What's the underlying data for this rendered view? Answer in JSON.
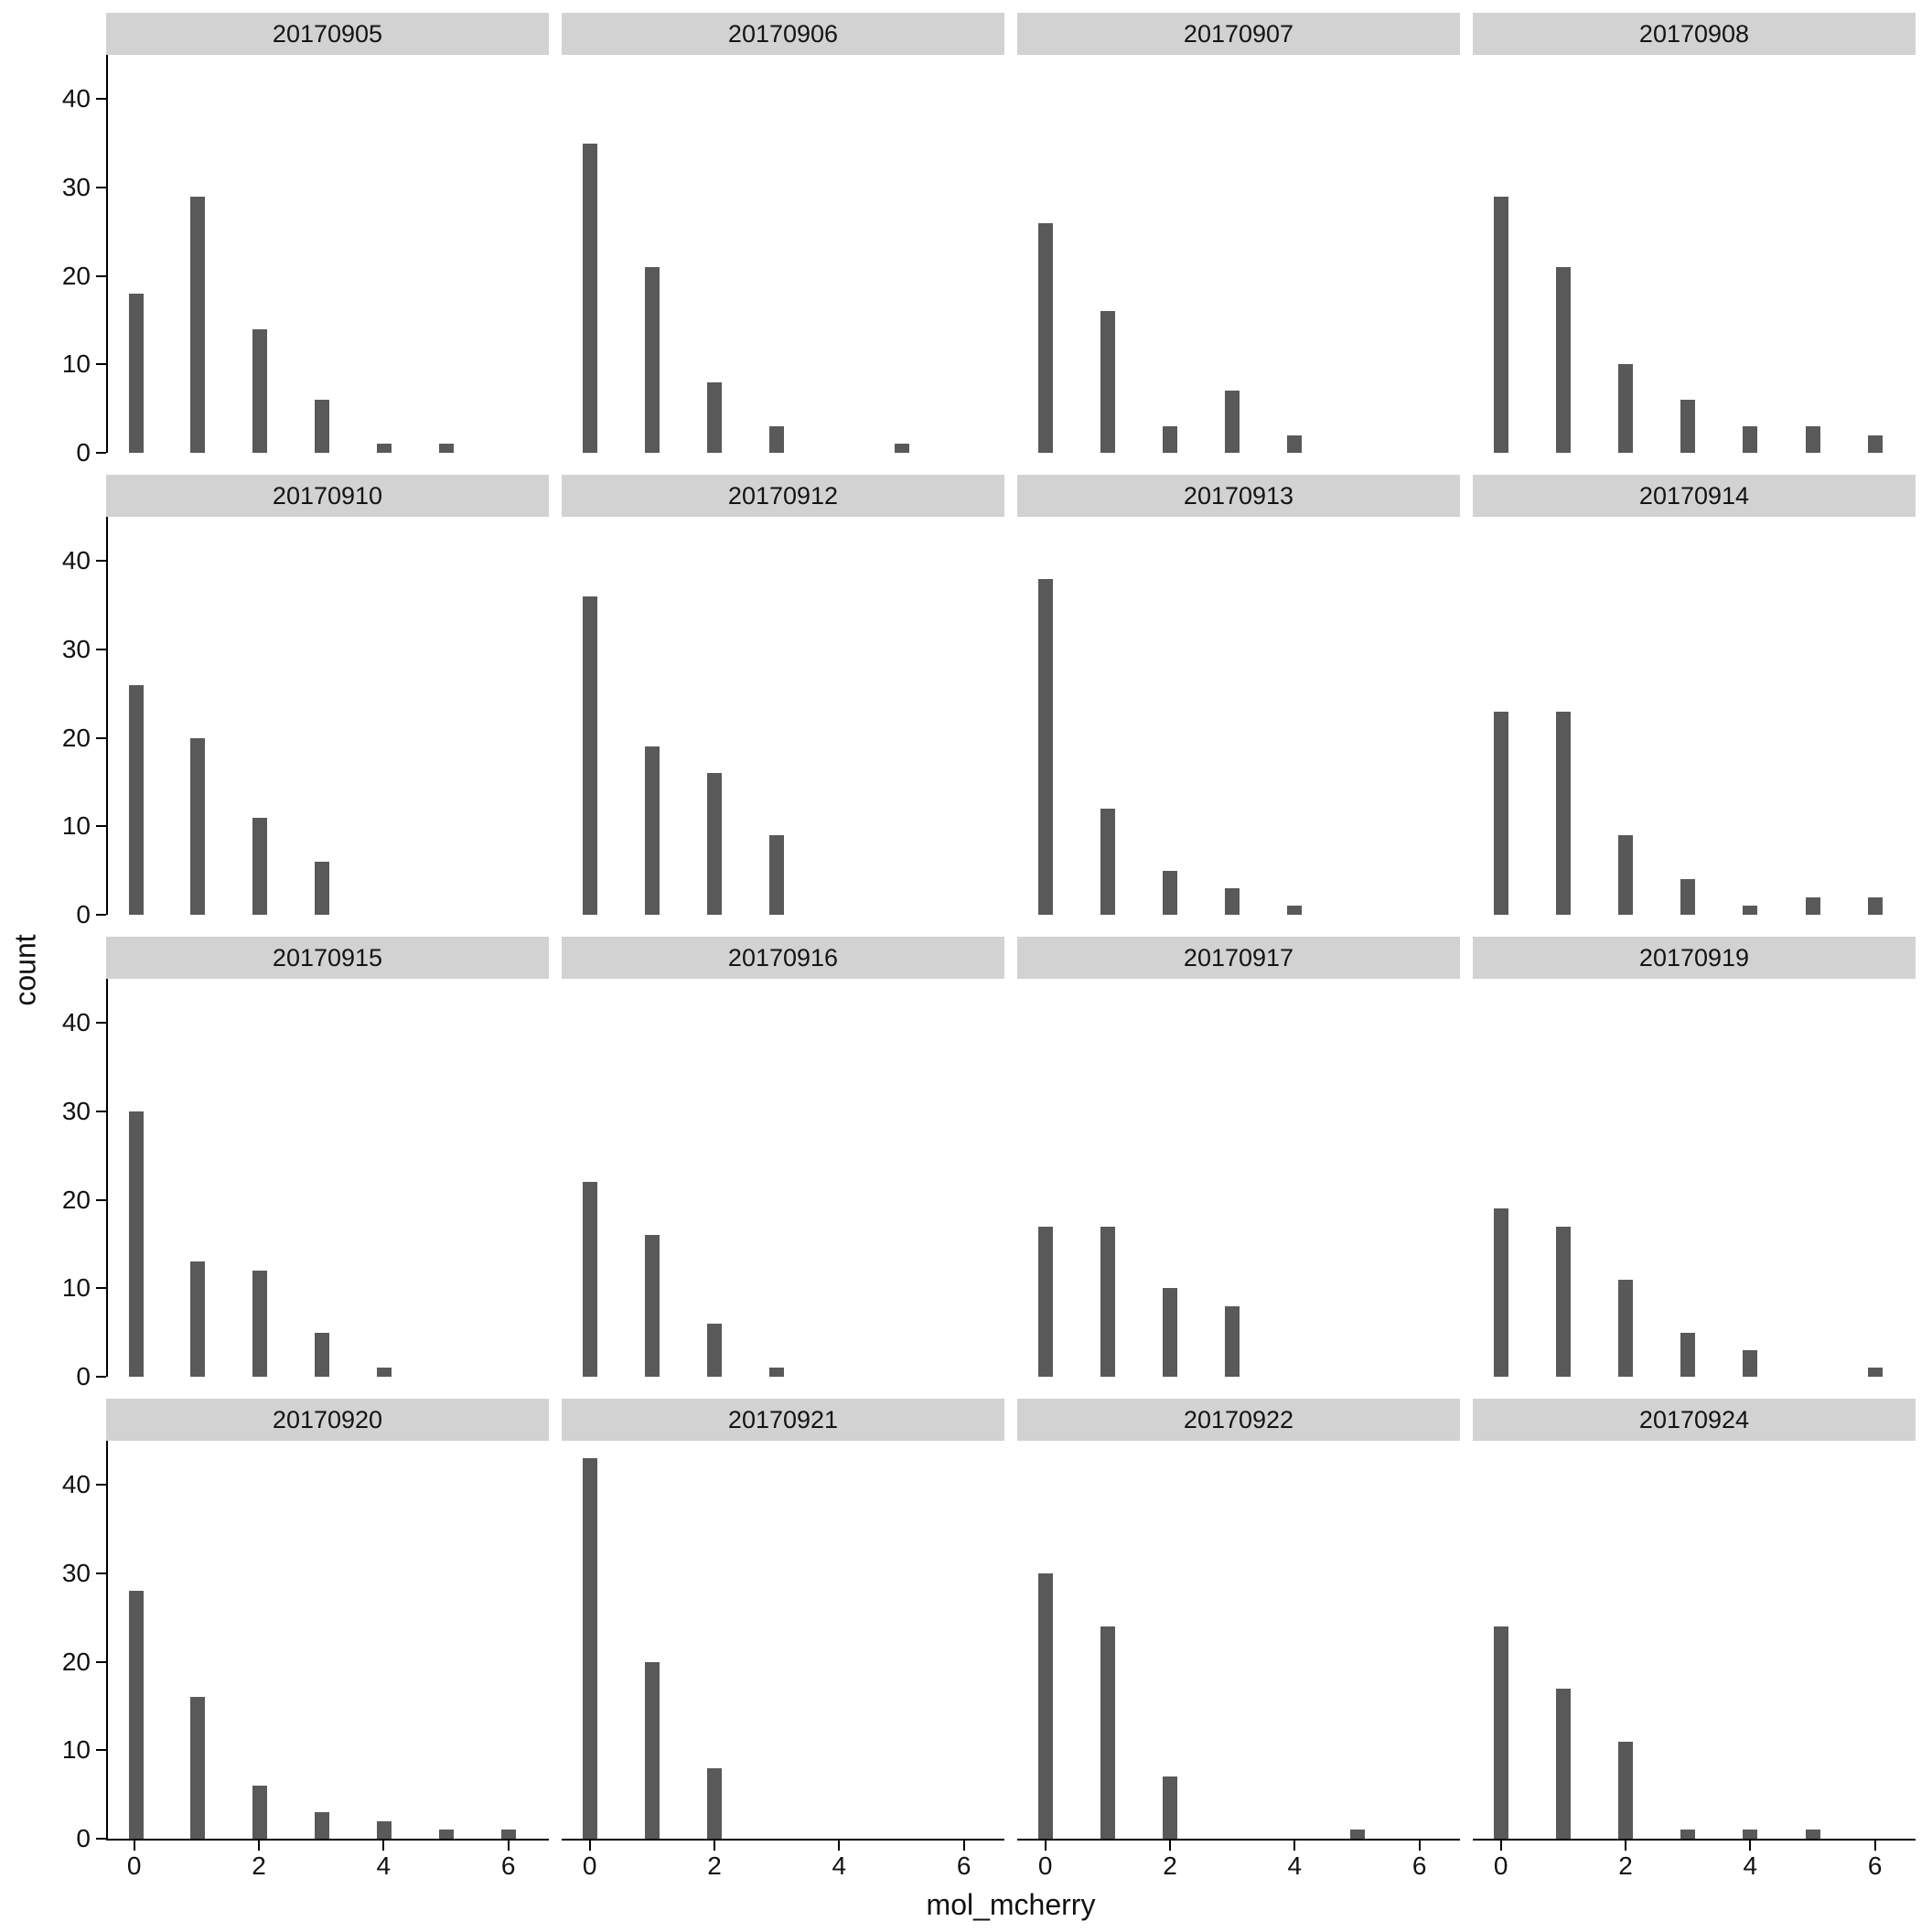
{
  "chart_data": {
    "type": "bar",
    "title": "",
    "xlabel": "mol_mcherry",
    "ylabel": "count",
    "xlim": [
      -0.45,
      6.65
    ],
    "ylim": [
      0,
      45
    ],
    "xticks": [
      0,
      2,
      4,
      6
    ],
    "yticks": [
      0,
      10,
      20,
      30,
      40
    ],
    "grid": "off",
    "legend": "none",
    "bar_color": "#595959",
    "strip_color": "#d2d2d2",
    "facets": [
      {
        "label": "20170905",
        "bars": [
          [
            0,
            18
          ],
          [
            1,
            29
          ],
          [
            2,
            14
          ],
          [
            3,
            6
          ],
          [
            4,
            1
          ],
          [
            5,
            1
          ]
        ]
      },
      {
        "label": "20170906",
        "bars": [
          [
            0,
            35
          ],
          [
            1,
            21
          ],
          [
            2,
            8
          ],
          [
            3,
            3
          ],
          [
            5,
            1
          ]
        ]
      },
      {
        "label": "20170907",
        "bars": [
          [
            0,
            26
          ],
          [
            1,
            16
          ],
          [
            2,
            3
          ],
          [
            3,
            7
          ],
          [
            4,
            2
          ]
        ]
      },
      {
        "label": "20170908",
        "bars": [
          [
            0,
            29
          ],
          [
            1,
            21
          ],
          [
            2,
            10
          ],
          [
            3,
            6
          ],
          [
            4,
            3
          ],
          [
            5,
            3
          ],
          [
            6,
            2
          ]
        ]
      },
      {
        "label": "20170910",
        "bars": [
          [
            0,
            26
          ],
          [
            1,
            20
          ],
          [
            2,
            11
          ],
          [
            3,
            6
          ]
        ]
      },
      {
        "label": "20170912",
        "bars": [
          [
            0,
            36
          ],
          [
            1,
            19
          ],
          [
            2,
            16
          ],
          [
            3,
            9
          ]
        ]
      },
      {
        "label": "20170913",
        "bars": [
          [
            0,
            38
          ],
          [
            1,
            12
          ],
          [
            2,
            5
          ],
          [
            3,
            3
          ],
          [
            4,
            1
          ]
        ]
      },
      {
        "label": "20170914",
        "bars": [
          [
            0,
            23
          ],
          [
            1,
            23
          ],
          [
            2,
            9
          ],
          [
            3,
            4
          ],
          [
            4,
            1
          ],
          [
            5,
            2
          ],
          [
            6,
            2
          ]
        ]
      },
      {
        "label": "20170915",
        "bars": [
          [
            0,
            30
          ],
          [
            1,
            13
          ],
          [
            2,
            12
          ],
          [
            3,
            5
          ],
          [
            4,
            1
          ]
        ]
      },
      {
        "label": "20170916",
        "bars": [
          [
            0,
            22
          ],
          [
            1,
            16
          ],
          [
            2,
            6
          ],
          [
            3,
            1
          ]
        ]
      },
      {
        "label": "20170917",
        "bars": [
          [
            0,
            17
          ],
          [
            1,
            17
          ],
          [
            2,
            10
          ],
          [
            3,
            8
          ]
        ]
      },
      {
        "label": "20170919",
        "bars": [
          [
            0,
            19
          ],
          [
            1,
            17
          ],
          [
            2,
            11
          ],
          [
            3,
            5
          ],
          [
            4,
            3
          ],
          [
            6,
            1
          ]
        ]
      },
      {
        "label": "20170920",
        "bars": [
          [
            0,
            28
          ],
          [
            1,
            16
          ],
          [
            2,
            6
          ],
          [
            3,
            3
          ],
          [
            4,
            2
          ],
          [
            5,
            1
          ],
          [
            6,
            1
          ]
        ]
      },
      {
        "label": "20170921",
        "bars": [
          [
            0,
            43
          ],
          [
            1,
            20
          ],
          [
            2,
            8
          ]
        ]
      },
      {
        "label": "20170922",
        "bars": [
          [
            0,
            30
          ],
          [
            1,
            24
          ],
          [
            2,
            7
          ],
          [
            5,
            1
          ]
        ]
      },
      {
        "label": "20170924",
        "bars": [
          [
            0,
            24
          ],
          [
            1,
            17
          ],
          [
            2,
            11
          ],
          [
            3,
            1
          ],
          [
            4,
            1
          ],
          [
            5,
            1
          ]
        ]
      }
    ]
  }
}
